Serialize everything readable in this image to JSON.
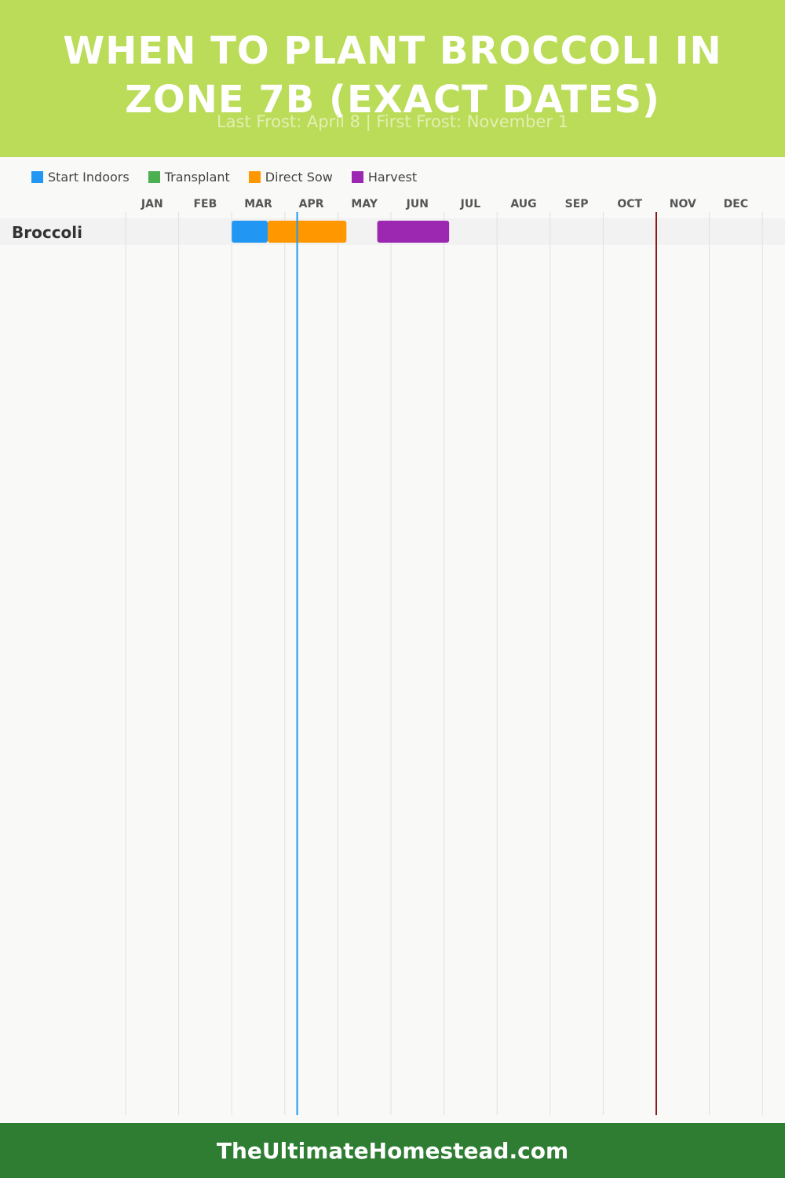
{
  "header": {
    "title": "WHEN TO PLANT BROCCOLI IN ZONE 7B (EXACT DATES)",
    "subtitle": "Last Frost: April 8 | First Frost: November 1"
  },
  "legend": [
    {
      "label": "Start Indoors",
      "color": "#2196f3"
    },
    {
      "label": "Transplant",
      "color": "#4caf50"
    },
    {
      "label": "Direct Sow",
      "color": "#ff9800"
    },
    {
      "label": "Harvest",
      "color": "#9c27b0"
    }
  ],
  "footer": {
    "text": "TheUltimateHomestead.com"
  },
  "colors": {
    "header_bg": "#bbdc58",
    "footer_bg": "#2e7d32",
    "last_frost_line": "#2196f3",
    "first_frost_line": "#8b1a1a"
  },
  "chart_data": {
    "type": "gantt",
    "months": [
      "JAN",
      "FEB",
      "MAR",
      "APR",
      "MAY",
      "JUN",
      "JUL",
      "AUG",
      "SEP",
      "OCT",
      "NOV",
      "DEC"
    ],
    "crops": [
      {
        "name": "Broccoli",
        "periods": [
          {
            "phase": "Start Indoors",
            "start": "Mar 1",
            "end": "Mar 22",
            "color": "#2196f3"
          },
          {
            "phase": "Direct Sow",
            "start": "Mar 22",
            "end": "May 6",
            "color": "#ff9800"
          },
          {
            "phase": "Harvest",
            "start": "May 24",
            "end": "Jul 4",
            "color": "#9c27b0"
          }
        ]
      }
    ],
    "markers": [
      {
        "name": "Last Frost",
        "date": "Apr 8",
        "color": "#2196f3"
      },
      {
        "name": "First Frost",
        "date": "Nov 1",
        "color": "#8b1a1a"
      }
    ]
  }
}
